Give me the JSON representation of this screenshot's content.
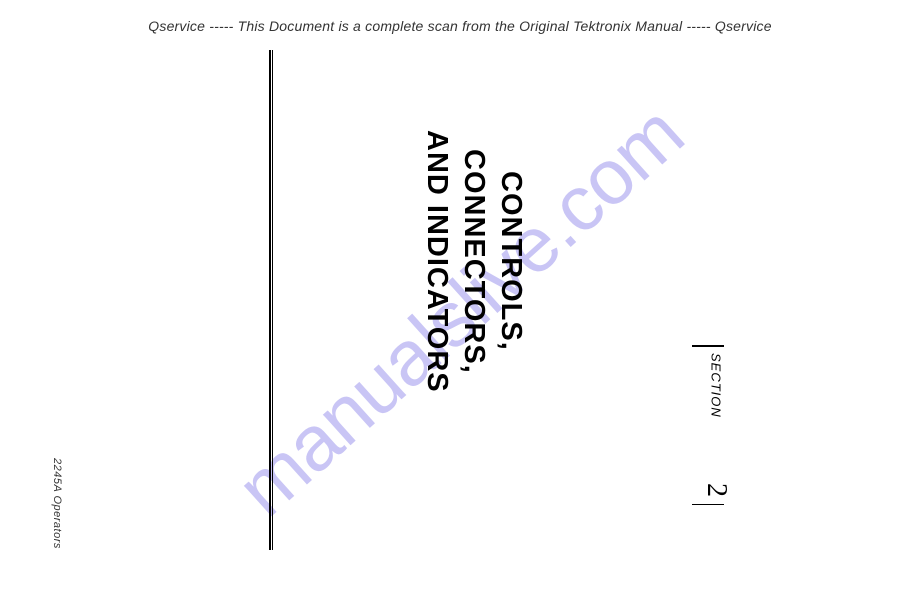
{
  "header": {
    "left_tag": "Qservice",
    "sep": " ----- ",
    "text": "This Document is a complete scan from the Original Tektronix Manual",
    "right_tag": "Qservice"
  },
  "section": {
    "label": "SECTION",
    "number": "2"
  },
  "title": {
    "line1": "CONTROLS,",
    "line2": "CONNECTORS,",
    "line3": "AND INDICATORS"
  },
  "footer": "2245A Operators",
  "watermark": "manualslive.com",
  "colors": {
    "text": "#000000",
    "header_text": "#333333",
    "watermark": "#9d97ed",
    "background": "#ffffff"
  }
}
